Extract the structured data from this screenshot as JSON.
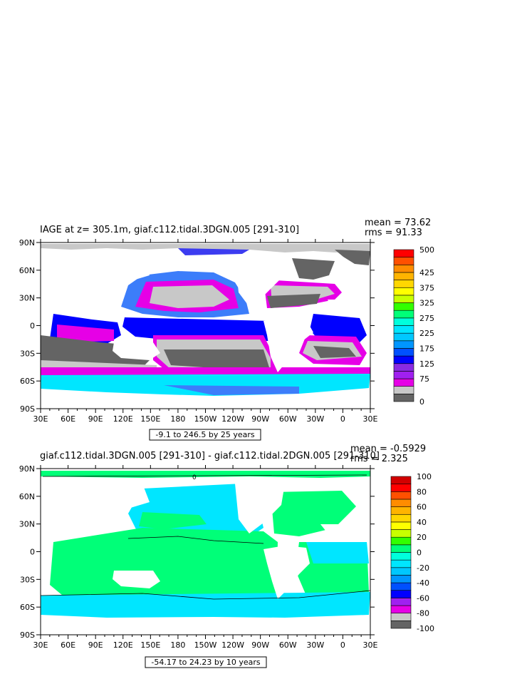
{
  "chart_data": [
    {
      "type": "heatmap",
      "title": "IAGE at z= 305.1m, giaf.c112.tidal.3DGN.005 [291-310]",
      "stats": {
        "mean": "mean = 73.62",
        "rms": "rms = 91.33"
      },
      "x_tick_labels": [
        "30E",
        "60E",
        "90E",
        "120E",
        "150E",
        "180",
        "150W",
        "120W",
        "90W",
        "60W",
        "30W",
        "0",
        "30E"
      ],
      "y_tick_labels": [
        "90N",
        "60N",
        "30N",
        "0",
        "30S",
        "60S",
        "90S"
      ],
      "xlim": [
        30,
        390
      ],
      "ylim": [
        -90,
        90
      ],
      "range_label": "-9.1 to 246.5 by 25 years",
      "colorbar": {
        "levels": [
          0,
          25,
          50,
          75,
          100,
          125,
          150,
          175,
          200,
          225,
          250,
          275,
          300,
          325,
          350,
          375,
          400,
          425,
          450,
          475,
          500
        ],
        "labels": [
          "0",
          "75",
          "125",
          "175",
          "225",
          "275",
          "325",
          "375",
          "425",
          "500"
        ],
        "label_levels": [
          0,
          75,
          125,
          175,
          225,
          275,
          325,
          375,
          425,
          500
        ],
        "colors": [
          "#646464",
          "#c8c8c8",
          "#e600e6",
          "#a020f0",
          "#8a2be2",
          "#0000ff",
          "#0050ff",
          "#0096ff",
          "#00c8ff",
          "#00e6ff",
          "#00ffdc",
          "#00ff78",
          "#32ff00",
          "#c8ff00",
          "#ffff00",
          "#ffd700",
          "#ffb400",
          "#ff8c00",
          "#ff5000",
          "#ff0000",
          "#d20000"
        ]
      }
    },
    {
      "type": "heatmap",
      "title": "giaf.c112.tidal.3DGN.005 [291-310] - giaf.c112.tidal.2DGN.005 [291-310]",
      "stats": {
        "mean": "mean = -0.5929",
        "rms": "rms = 2.325"
      },
      "x_tick_labels": [
        "30E",
        "60E",
        "90E",
        "120E",
        "150E",
        "180",
        "150W",
        "120W",
        "90W",
        "60W",
        "30W",
        "0",
        "30E"
      ],
      "y_tick_labels": [
        "90N",
        "60N",
        "30N",
        "0",
        "30S",
        "60S",
        "90S"
      ],
      "xlim": [
        30,
        390
      ],
      "ylim": [
        -90,
        90
      ],
      "range_label": "-54.17 to 24.23 by 10 years",
      "contour_label": "0",
      "colorbar": {
        "levels": [
          -100,
          -90,
          -80,
          -70,
          -60,
          -50,
          -40,
          -30,
          -20,
          -10,
          0,
          10,
          20,
          30,
          40,
          50,
          60,
          70,
          80,
          90,
          100
        ],
        "labels": [
          "-100",
          "-80",
          "-60",
          "-40",
          "-20",
          "0",
          "20",
          "40",
          "60",
          "80",
          "100"
        ],
        "label_levels": [
          -100,
          -80,
          -60,
          -40,
          -20,
          0,
          20,
          40,
          60,
          80,
          100
        ],
        "colors": [
          "#646464",
          "#c8c8c8",
          "#e600e6",
          "#a020f0",
          "#0000ff",
          "#0050ff",
          "#0096ff",
          "#00c8ff",
          "#00e6ff",
          "#00ffdc",
          "#00ff78",
          "#32ff00",
          "#c8ff00",
          "#ffff00",
          "#ffd700",
          "#ffb400",
          "#ff8c00",
          "#ff5000",
          "#ff0000",
          "#d20000"
        ]
      }
    }
  ]
}
